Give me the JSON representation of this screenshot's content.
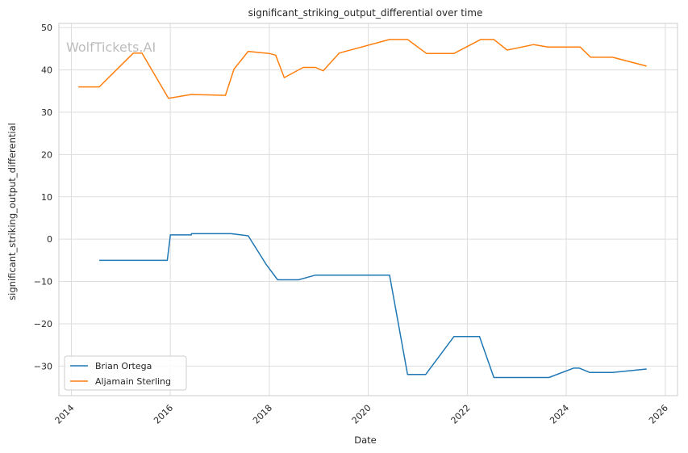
{
  "chart_data": {
    "type": "line",
    "title": "significant_striking_output_differential over time",
    "xlabel": "Date",
    "ylabel": "significant_striking_output_differential",
    "watermark": "WolfTickets.AI",
    "x_axis": {
      "type": "date",
      "range": [
        "2013-10-01",
        "2026-04-01"
      ],
      "ticks": [
        "2014",
        "2016",
        "2018",
        "2020",
        "2022",
        "2024",
        "2026"
      ]
    },
    "y_axis": {
      "range": [
        -37,
        51
      ],
      "ticks": [
        "−30",
        "−20",
        "−10",
        "0",
        "10",
        "20",
        "30",
        "40",
        "50"
      ],
      "tick_values": [
        -30,
        -20,
        -10,
        0,
        10,
        20,
        30,
        40,
        50
      ]
    },
    "grid": true,
    "legend": {
      "placement": "lower-left"
    },
    "series": [
      {
        "name": "Brian Ortega",
        "color": "#1f77b4",
        "points": [
          [
            "2014-07-26",
            -5.0
          ],
          [
            "2015-12-10",
            -5.0
          ],
          [
            "2016-01-02",
            1.0
          ],
          [
            "2016-06-04",
            1.0
          ],
          [
            "2016-06-05",
            1.3
          ],
          [
            "2017-03-25",
            1.3
          ],
          [
            "2017-07-29",
            0.8
          ],
          [
            "2017-12-09",
            -6.0
          ],
          [
            "2018-03-03",
            -9.6
          ],
          [
            "2018-08-04",
            -9.6
          ],
          [
            "2018-12-08",
            -8.5
          ],
          [
            "2020-06-06",
            -8.5
          ],
          [
            "2020-10-17",
            -32.0
          ],
          [
            "2021-02-27",
            -32.0
          ],
          [
            "2021-09-25",
            -23.0
          ],
          [
            "2022-04-01",
            -23.0
          ],
          [
            "2022-07-16",
            -32.7
          ],
          [
            "2023-08-26",
            -32.7
          ],
          [
            "2024-02-24",
            -30.5
          ],
          [
            "2024-04-06",
            -30.5
          ],
          [
            "2024-06-22",
            -31.5
          ],
          [
            "2024-12-07",
            -31.5
          ],
          [
            "2025-08-16",
            -30.7
          ]
        ]
      },
      {
        "name": "Aljamain Sterling",
        "color": "#ff7f0e",
        "points": [
          [
            "2014-02-22",
            36.0
          ],
          [
            "2014-07-26",
            36.0
          ],
          [
            "2015-04-04",
            44.0
          ],
          [
            "2015-06-06",
            44.0
          ],
          [
            "2015-12-19",
            33.3
          ],
          [
            "2016-06-04",
            34.2
          ],
          [
            "2017-02-11",
            34.0
          ],
          [
            "2017-04-15",
            40.2
          ],
          [
            "2017-07-29",
            44.4
          ],
          [
            "2017-12-30",
            43.9
          ],
          [
            "2018-02-17",
            43.5
          ],
          [
            "2018-04-21",
            38.2
          ],
          [
            "2018-09-08",
            40.6
          ],
          [
            "2018-12-08",
            40.6
          ],
          [
            "2019-02-02",
            39.8
          ],
          [
            "2019-06-01",
            44.0
          ],
          [
            "2020-06-06",
            47.2
          ],
          [
            "2020-10-17",
            47.2
          ],
          [
            "2021-03-06",
            43.9
          ],
          [
            "2021-09-25",
            43.9
          ],
          [
            "2022-04-09",
            47.2
          ],
          [
            "2022-07-16",
            47.2
          ],
          [
            "2022-10-22",
            44.7
          ],
          [
            "2023-05-06",
            46.0
          ],
          [
            "2023-08-19",
            45.4
          ],
          [
            "2024-04-13",
            45.4
          ],
          [
            "2024-06-29",
            43.0
          ],
          [
            "2024-12-07",
            43.0
          ],
          [
            "2025-08-16",
            40.9
          ]
        ]
      }
    ]
  }
}
